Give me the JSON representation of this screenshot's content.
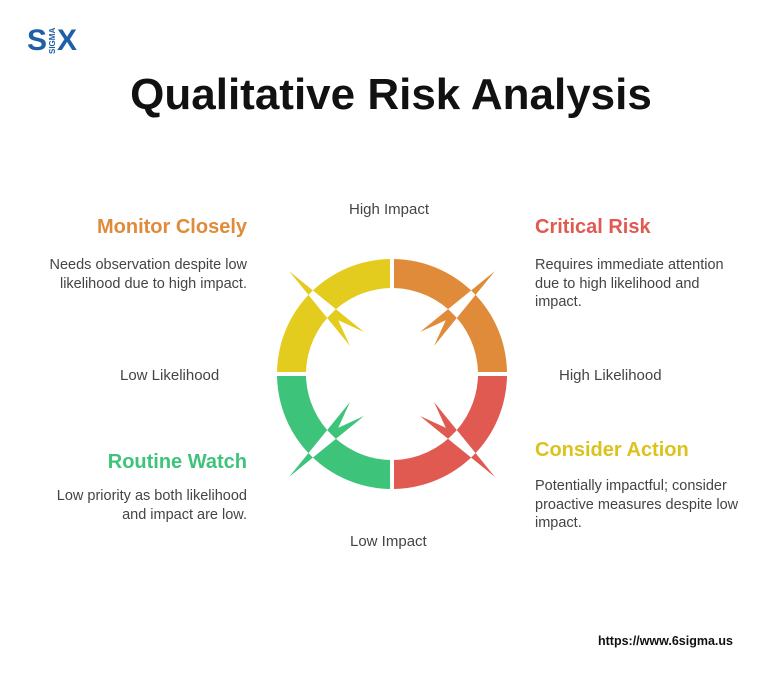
{
  "logo": {
    "s": "S",
    "sigma": "SIGMA",
    "x": "X"
  },
  "title": "Qualitative Risk Analysis",
  "axes": {
    "top": "High Impact",
    "bottom": "Low Impact",
    "left": "Low Likelihood",
    "right": "High Likelihood"
  },
  "quadrants": {
    "top_left": {
      "title": "Monitor Closely",
      "color": "#e08b3a",
      "segment_color": "#e3cc1e",
      "desc": "Needs observation despite low likelihood due to high impact."
    },
    "top_right": {
      "title": "Critical Risk",
      "color": "#e05a52",
      "segment_color": "#e08b3a",
      "desc": "Requires immediate attention due to high likelihood and impact."
    },
    "bottom_left": {
      "title": "Routine Watch",
      "color": "#3ec47a",
      "segment_color": "#3ec47a",
      "desc": "Low priority as both likelihood and impact are low."
    },
    "bottom_right": {
      "title": "Consider Action",
      "color": "#dcc21c",
      "segment_color": "#e05a52",
      "desc": "Potentially impactful; consider proactive measures despite low impact."
    }
  },
  "footer_url": "https://www.6sigma.us"
}
